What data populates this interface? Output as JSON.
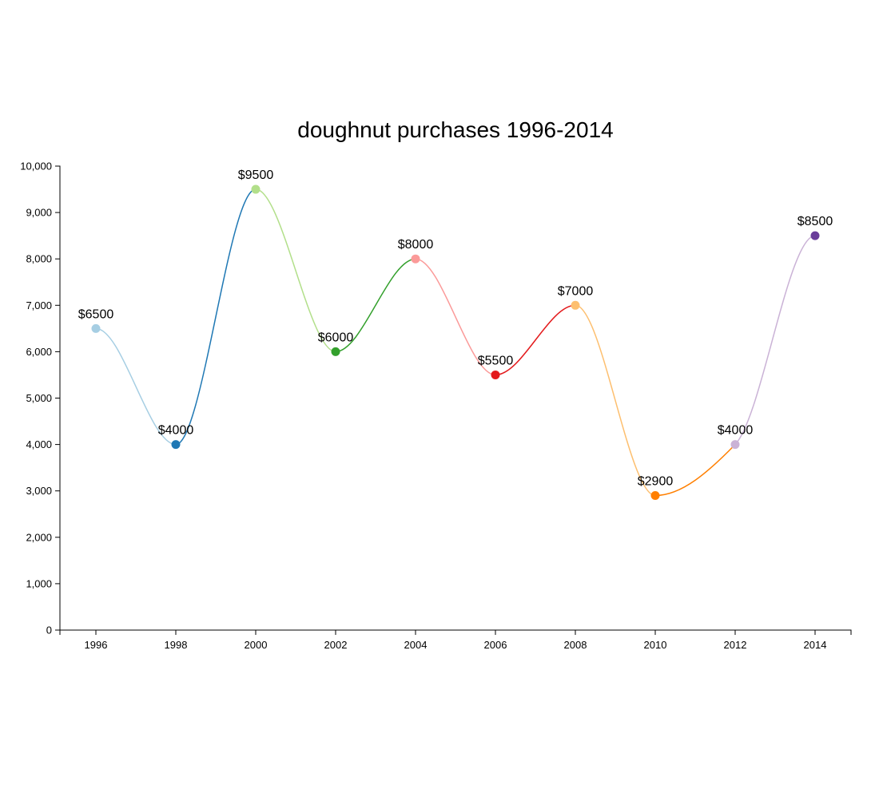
{
  "chart_data": {
    "type": "line",
    "title": "doughnut purchases 1996-2014",
    "xlabel": "",
    "ylabel": "",
    "x": [
      1996,
      1998,
      2000,
      2002,
      2004,
      2006,
      2008,
      2010,
      2012,
      2014
    ],
    "values": [
      6500,
      4000,
      9500,
      6000,
      8000,
      5500,
      7000,
      2900,
      4000,
      8500
    ],
    "data_labels": [
      "$6500",
      "$4000",
      "$9500",
      "$6000",
      "$8000",
      "$5500",
      "$7000",
      "$2900",
      "$4000",
      "$8500"
    ],
    "point_colors": [
      "#a6cee3",
      "#1f78b4",
      "#b2df8a",
      "#33a02c",
      "#fb9a99",
      "#e31a1c",
      "#fdbf6f",
      "#ff7f00",
      "#cab2d6",
      "#6a3d9a"
    ],
    "x_ticks": [
      "1996",
      "1998",
      "2000",
      "2002",
      "2004",
      "2006",
      "2008",
      "2010",
      "2012",
      "2014"
    ],
    "y_ticks": [
      "0",
      "1,000",
      "2,000",
      "3,000",
      "4,000",
      "5,000",
      "6,000",
      "7,000",
      "8,000",
      "9,000",
      "10,000"
    ],
    "y_tick_values": [
      0,
      1000,
      2000,
      3000,
      4000,
      5000,
      6000,
      7000,
      8000,
      9000,
      10000
    ],
    "ylim": [
      0,
      10000
    ],
    "xlim": [
      1995.1,
      2014.9
    ],
    "grid": false,
    "legend": "none",
    "curve": "smooth"
  }
}
